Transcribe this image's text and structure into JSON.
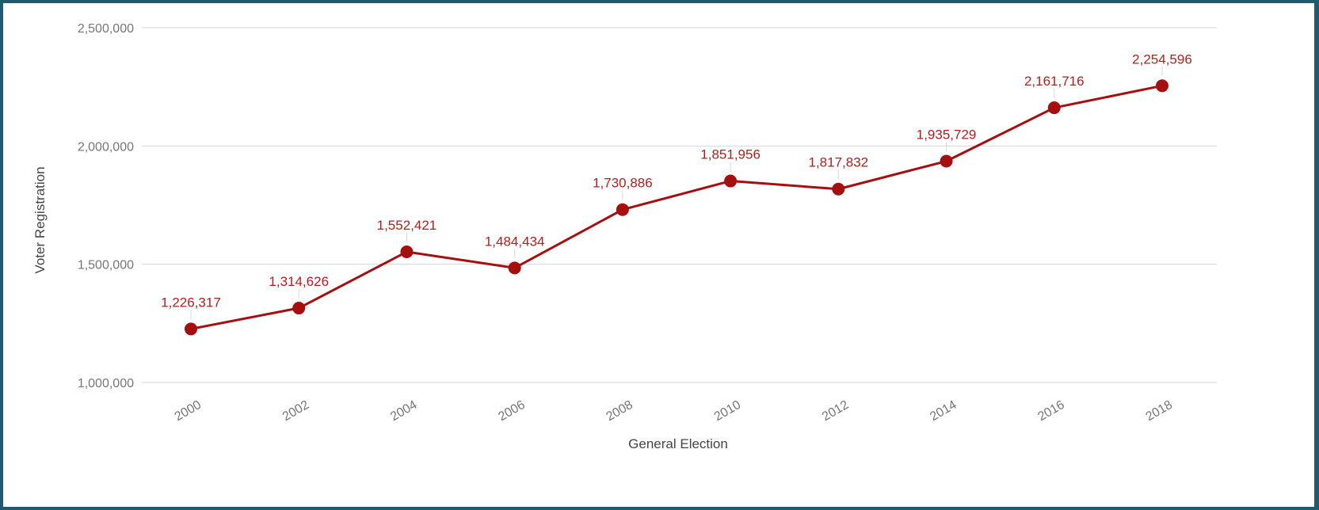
{
  "chart_data": {
    "type": "line",
    "title": "",
    "xlabel": "General Election",
    "ylabel": "Voter Registration",
    "x": [
      "2000",
      "2002",
      "2004",
      "2006",
      "2008",
      "2010",
      "2012",
      "2014",
      "2016",
      "2018"
    ],
    "series": [
      {
        "values": [
          1226317,
          1314626,
          1552421,
          1484434,
          1730886,
          1851956,
          1817832,
          1935729,
          2161716,
          2254596
        ],
        "labels": [
          "1,226,317",
          "1,314,626",
          "1,552,421",
          "1,484,434",
          "1,730,886",
          "1,851,956",
          "1,817,832",
          "1,935,729",
          "2,161,716",
          "2,254,596"
        ],
        "color": "#a50f0f"
      }
    ],
    "ylim": [
      1000000,
      2500000
    ],
    "yticks": [
      1000000,
      1500000,
      2000000,
      2500000
    ],
    "ytick_labels": [
      "1,000,000",
      "1,500,000",
      "2,000,000",
      "2,500,000"
    ],
    "grid": true,
    "legend": "none",
    "colors": {
      "line": "#a50f0f",
      "point": "#a50f0f",
      "label": "#b71c1c",
      "grid": "#d6d6d6",
      "frame": "#1f5a6e"
    }
  }
}
